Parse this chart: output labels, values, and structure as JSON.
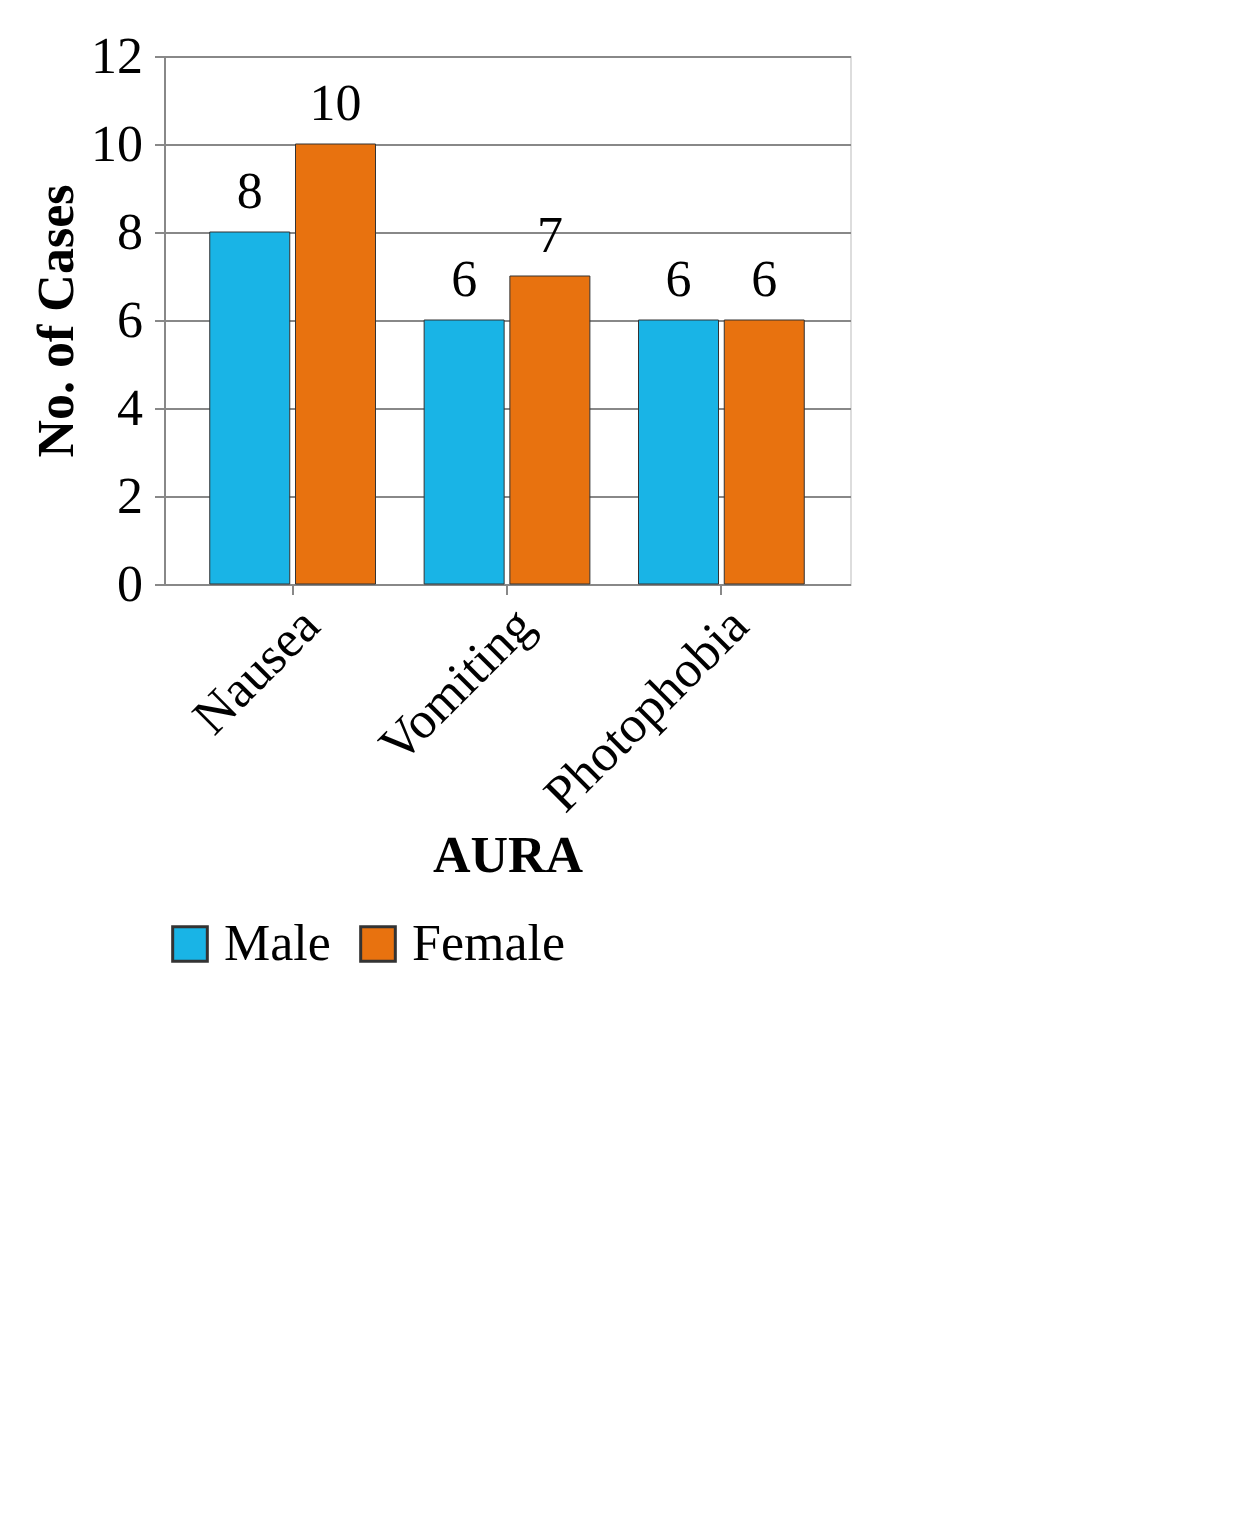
{
  "chart_data": {
    "type": "bar",
    "xlabel": "AURA",
    "ylabel": "No. of Cases",
    "categories": [
      "Nausea",
      "Vomiting",
      "Photophobia"
    ],
    "series": [
      {
        "name": "Male",
        "color": "#19b4e6",
        "values": [
          8,
          6,
          6
        ]
      },
      {
        "name": "Female",
        "color": "#e8720f",
        "values": [
          10,
          7,
          6
        ]
      }
    ],
    "ylim": [
      0,
      12
    ],
    "yticks": [
      0,
      2,
      4,
      6,
      8,
      10,
      12
    ],
    "grid": "y",
    "legend": "bottom",
    "data_labels": true
  }
}
